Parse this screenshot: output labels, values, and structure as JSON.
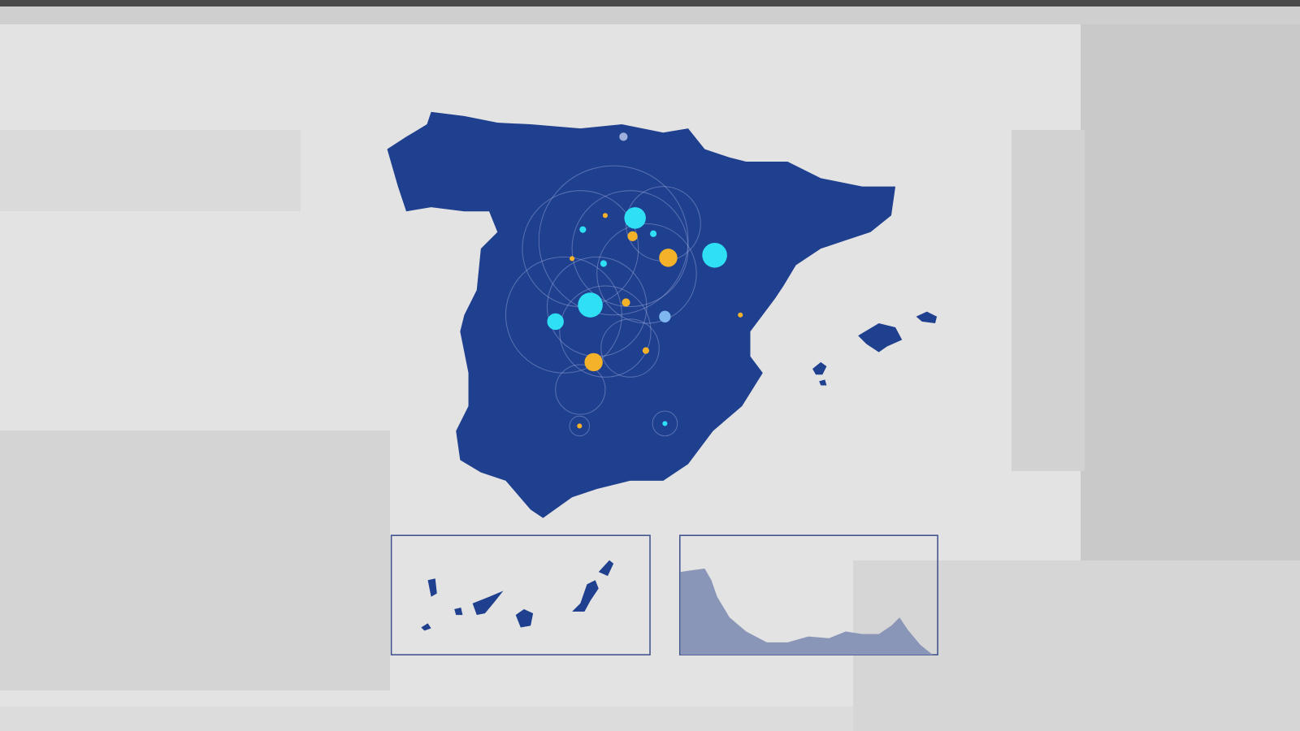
{
  "colors": {
    "background": "#dcdcdc",
    "land": "#1f3f8f",
    "land_light": "#2a4ea3",
    "inset_border": "#3c4f8a",
    "inset_land": "#8a96b8",
    "marker_cyan": "#2fe0f5",
    "marker_orange": "#f3b22a",
    "marker_lightblue": "#7fb8f0",
    "rings": "#9fb0dd"
  },
  "map": {
    "region": "Spain",
    "insets": [
      "canary-islands",
      "ceuta-melilla-coast"
    ]
  }
}
